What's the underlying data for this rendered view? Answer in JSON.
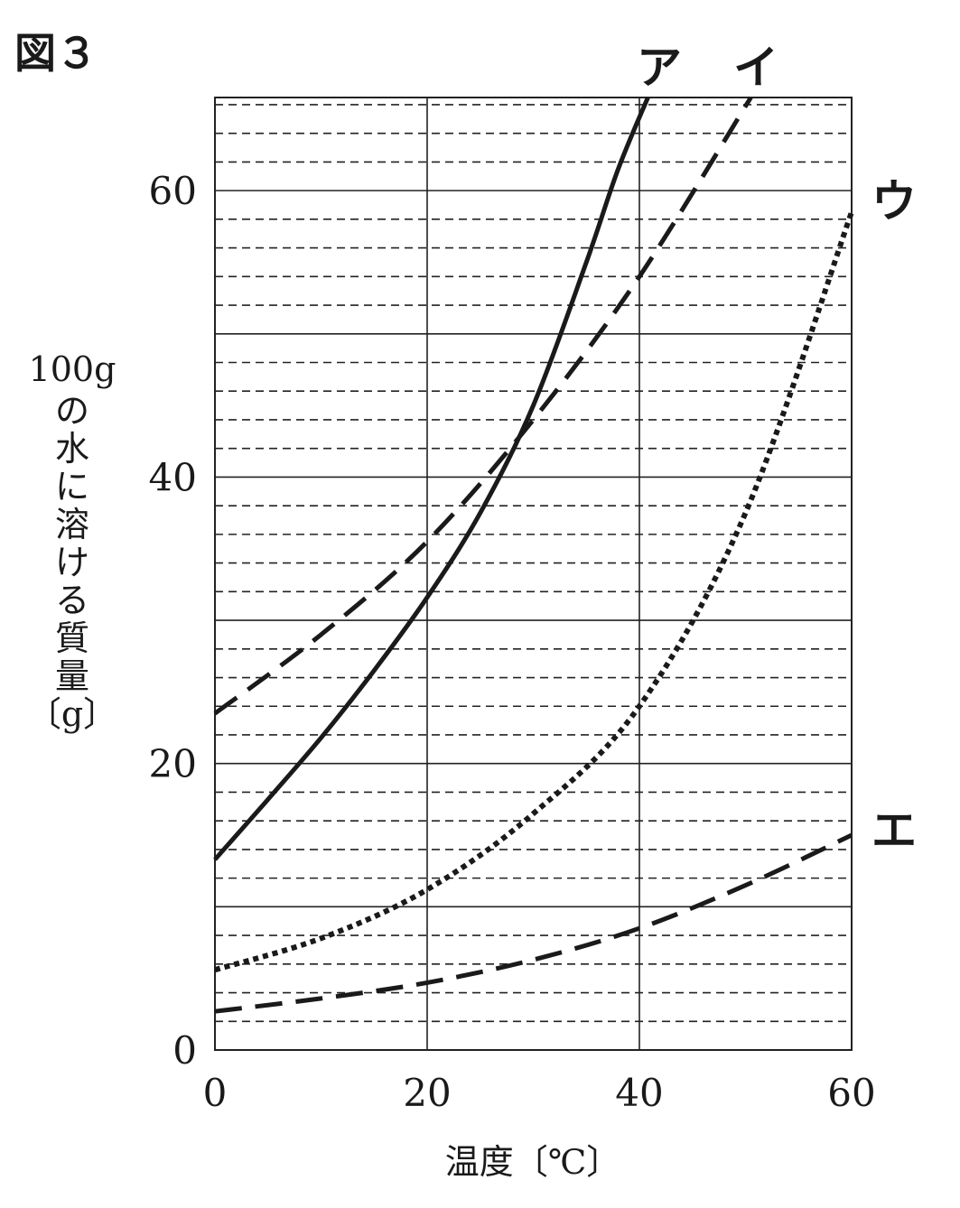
{
  "figure_label": "図３",
  "chart_data": {
    "type": "line",
    "title": "",
    "xlabel": "温度〔℃〕",
    "ylabel": "100gの水に溶ける質量〔g〕",
    "xlim": [
      0,
      60
    ],
    "ylim": [
      0,
      66.5
    ],
    "x_ticks": [
      "0",
      "20",
      "40",
      "60"
    ],
    "y_ticks": [
      "0",
      "20",
      "40",
      "60"
    ],
    "grid": {
      "major_x": 20,
      "major_y": 10,
      "minor_y": 2
    },
    "colors": {
      "line": "#1a1a1a",
      "grid": "#222222"
    },
    "series": [
      {
        "name": "ア",
        "style": "solid",
        "x": [
          0,
          5,
          10,
          15,
          20,
          25,
          30,
          35,
          38,
          40.8
        ],
        "y": [
          13.3,
          17.5,
          21.8,
          26.5,
          31.6,
          37.5,
          45.0,
          55.0,
          61.5,
          66.5
        ]
      },
      {
        "name": "イ",
        "style": "dashed",
        "x": [
          0,
          10,
          20,
          30,
          40,
          50.5
        ],
        "y": [
          23.5,
          29.0,
          35.5,
          44.0,
          54.0,
          66.5
        ]
      },
      {
        "name": "ウ",
        "style": "dotted",
        "x": [
          0,
          10,
          20,
          30,
          40,
          50,
          60
        ],
        "y": [
          5.6,
          7.8,
          11.2,
          16.5,
          24.0,
          37.5,
          58.5
        ]
      },
      {
        "name": "エ",
        "style": "dashed",
        "x": [
          0,
          10,
          20,
          30,
          40,
          50,
          60
        ],
        "y": [
          2.7,
          3.6,
          4.7,
          6.3,
          8.5,
          11.5,
          15.0
        ]
      }
    ]
  }
}
